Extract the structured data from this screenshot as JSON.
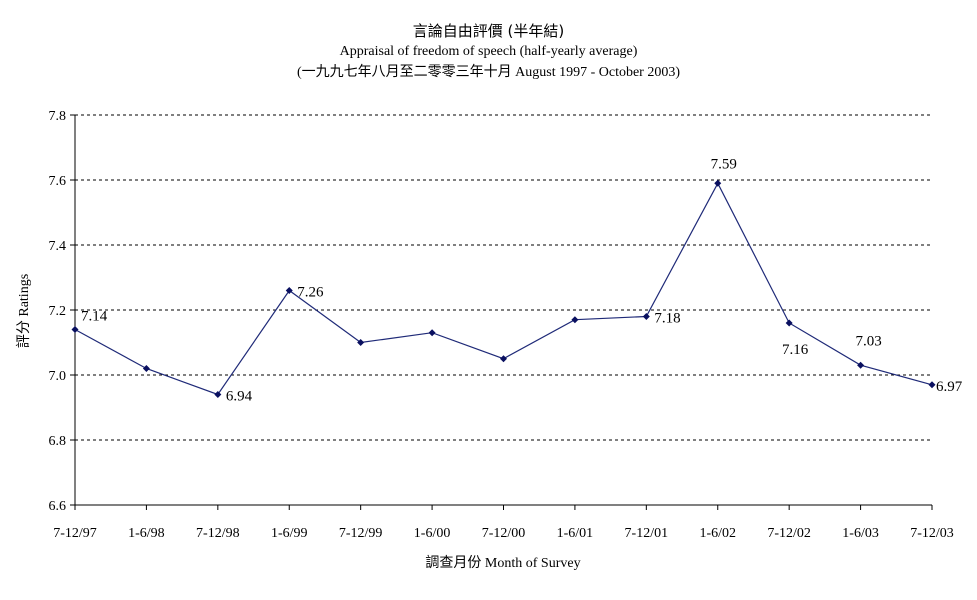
{
  "chart_data": {
    "type": "line",
    "title": "言論自由評價 (半年結)",
    "subtitle": "Appraisal of freedom of speech (half-yearly average)",
    "subtitle2": "(一九九七年八月至二零零三年十月 August 1997 - October 2003)",
    "xlabel": "調查月份 Month of Survey",
    "ylabel": "評分 Ratings",
    "categories": [
      "7-12/97",
      "1-6/98",
      "7-12/98",
      "1-6/99",
      "7-12/99",
      "1-6/00",
      "7-12/00",
      "1-6/01",
      "7-12/01",
      "1-6/02",
      "7-12/02",
      "1-6/03",
      "7-12/03"
    ],
    "values": [
      7.14,
      7.02,
      6.94,
      7.26,
      7.1,
      7.13,
      7.05,
      7.17,
      7.18,
      7.59,
      7.16,
      7.03,
      6.97
    ],
    "data_labels": [
      "7.14",
      "",
      "6.94",
      "7.26",
      "",
      "",
      "",
      "",
      "7.18",
      "7.59",
      "7.16",
      "7.03",
      "6.97"
    ],
    "ylim": [
      6.6,
      7.8
    ],
    "yticks": [
      "6.6",
      "6.8",
      "7.0",
      "7.2",
      "7.4",
      "7.6",
      "7.8"
    ],
    "grid": "horizontal dashed",
    "line_color": "#1f2a78",
    "marker_color": "#0a1060"
  }
}
